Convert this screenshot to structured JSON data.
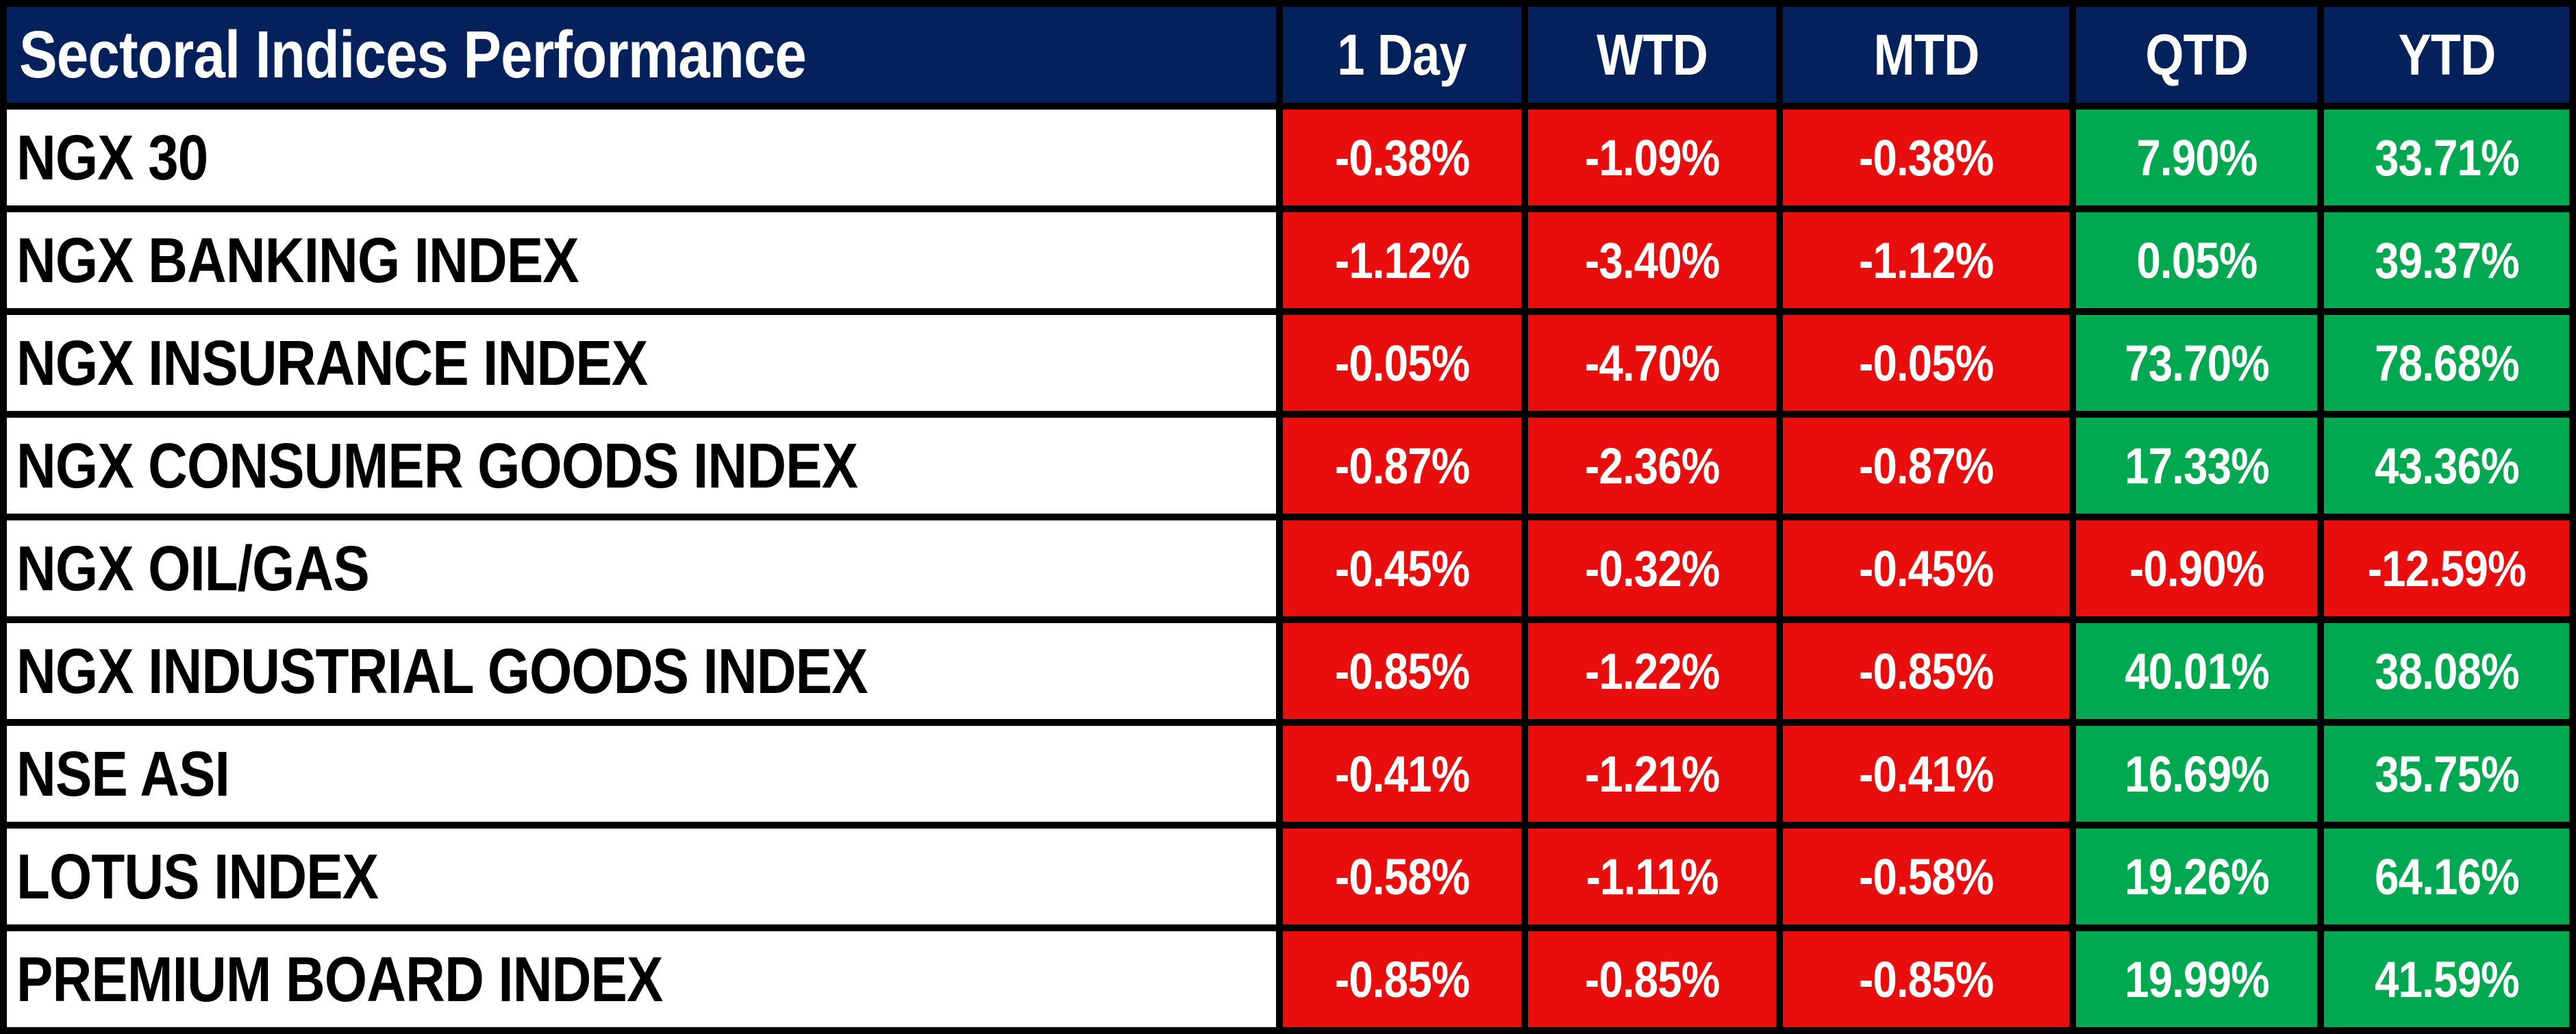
{
  "title": "Sectoral Indices Performance",
  "columns": [
    "1 Day",
    "WTD",
    "MTD",
    "QTD",
    "YTD"
  ],
  "colors": {
    "header_bg": "#04215C",
    "header_text": "#FFFFFF",
    "label_bg": "#FFFFFF",
    "label_text": "#000000",
    "value_text": "#FFFFFF",
    "negative": "#E90E0E",
    "positive": "#00A94F",
    "grid": "#000000"
  },
  "rows": [
    {
      "label": "NGX 30",
      "values": [
        "-0.38%",
        "-1.09%",
        "-0.38%",
        "7.90%",
        "33.71%"
      ]
    },
    {
      "label": "NGX BANKING INDEX",
      "values": [
        "-1.12%",
        "-3.40%",
        "-1.12%",
        "0.05%",
        "39.37%"
      ]
    },
    {
      "label": "NGX INSURANCE INDEX",
      "values": [
        "-0.05%",
        "-4.70%",
        "-0.05%",
        "73.70%",
        "78.68%"
      ]
    },
    {
      "label": "NGX CONSUMER GOODS INDEX",
      "values": [
        "-0.87%",
        "-2.36%",
        "-0.87%",
        "17.33%",
        "43.36%"
      ]
    },
    {
      "label": "NGX OIL/GAS",
      "values": [
        "-0.45%",
        "-0.32%",
        "-0.45%",
        "-0.90%",
        "-12.59%"
      ]
    },
    {
      "label": "NGX INDUSTRIAL GOODS INDEX",
      "values": [
        "-0.85%",
        "-1.22%",
        "-0.85%",
        "40.01%",
        "38.08%"
      ]
    },
    {
      "label": "NSE ASI",
      "values": [
        "-0.41%",
        "-1.21%",
        "-0.41%",
        "16.69%",
        "35.75%"
      ]
    },
    {
      "label": "LOTUS INDEX",
      "values": [
        "-0.58%",
        "-1.11%",
        "-0.58%",
        "19.26%",
        "64.16%"
      ]
    },
    {
      "label": "PREMIUM BOARD INDEX",
      "values": [
        "-0.85%",
        "-0.85%",
        "-0.85%",
        "19.99%",
        "41.59%"
      ]
    }
  ],
  "chart_data": {
    "type": "table",
    "title": "Sectoral Indices Performance",
    "categories": [
      "NGX 30",
      "NGX BANKING INDEX",
      "NGX INSURANCE INDEX",
      "NGX CONSUMER GOODS INDEX",
      "NGX OIL/GAS",
      "NGX INDUSTRIAL GOODS INDEX",
      "NSE ASI",
      "LOTUS INDEX",
      "PREMIUM BOARD INDEX"
    ],
    "series": [
      {
        "name": "1 Day",
        "values": [
          -0.38,
          -1.12,
          -0.05,
          -0.87,
          -0.45,
          -0.85,
          -0.41,
          -0.58,
          -0.85
        ]
      },
      {
        "name": "WTD",
        "values": [
          -1.09,
          -3.4,
          -4.7,
          -2.36,
          -0.32,
          -1.22,
          -1.21,
          -1.11,
          -0.85
        ]
      },
      {
        "name": "MTD",
        "values": [
          -0.38,
          -1.12,
          -0.05,
          -0.87,
          -0.45,
          -0.85,
          -0.41,
          -0.58,
          -0.85
        ]
      },
      {
        "name": "QTD",
        "values": [
          7.9,
          0.05,
          73.7,
          17.33,
          -0.9,
          40.01,
          16.69,
          19.26,
          19.99
        ]
      },
      {
        "name": "YTD",
        "values": [
          33.71,
          39.37,
          78.68,
          43.36,
          -12.59,
          38.08,
          35.75,
          64.16,
          41.59
        ]
      }
    ],
    "unit": "%",
    "color_coding": "negative=red, positive=green"
  }
}
